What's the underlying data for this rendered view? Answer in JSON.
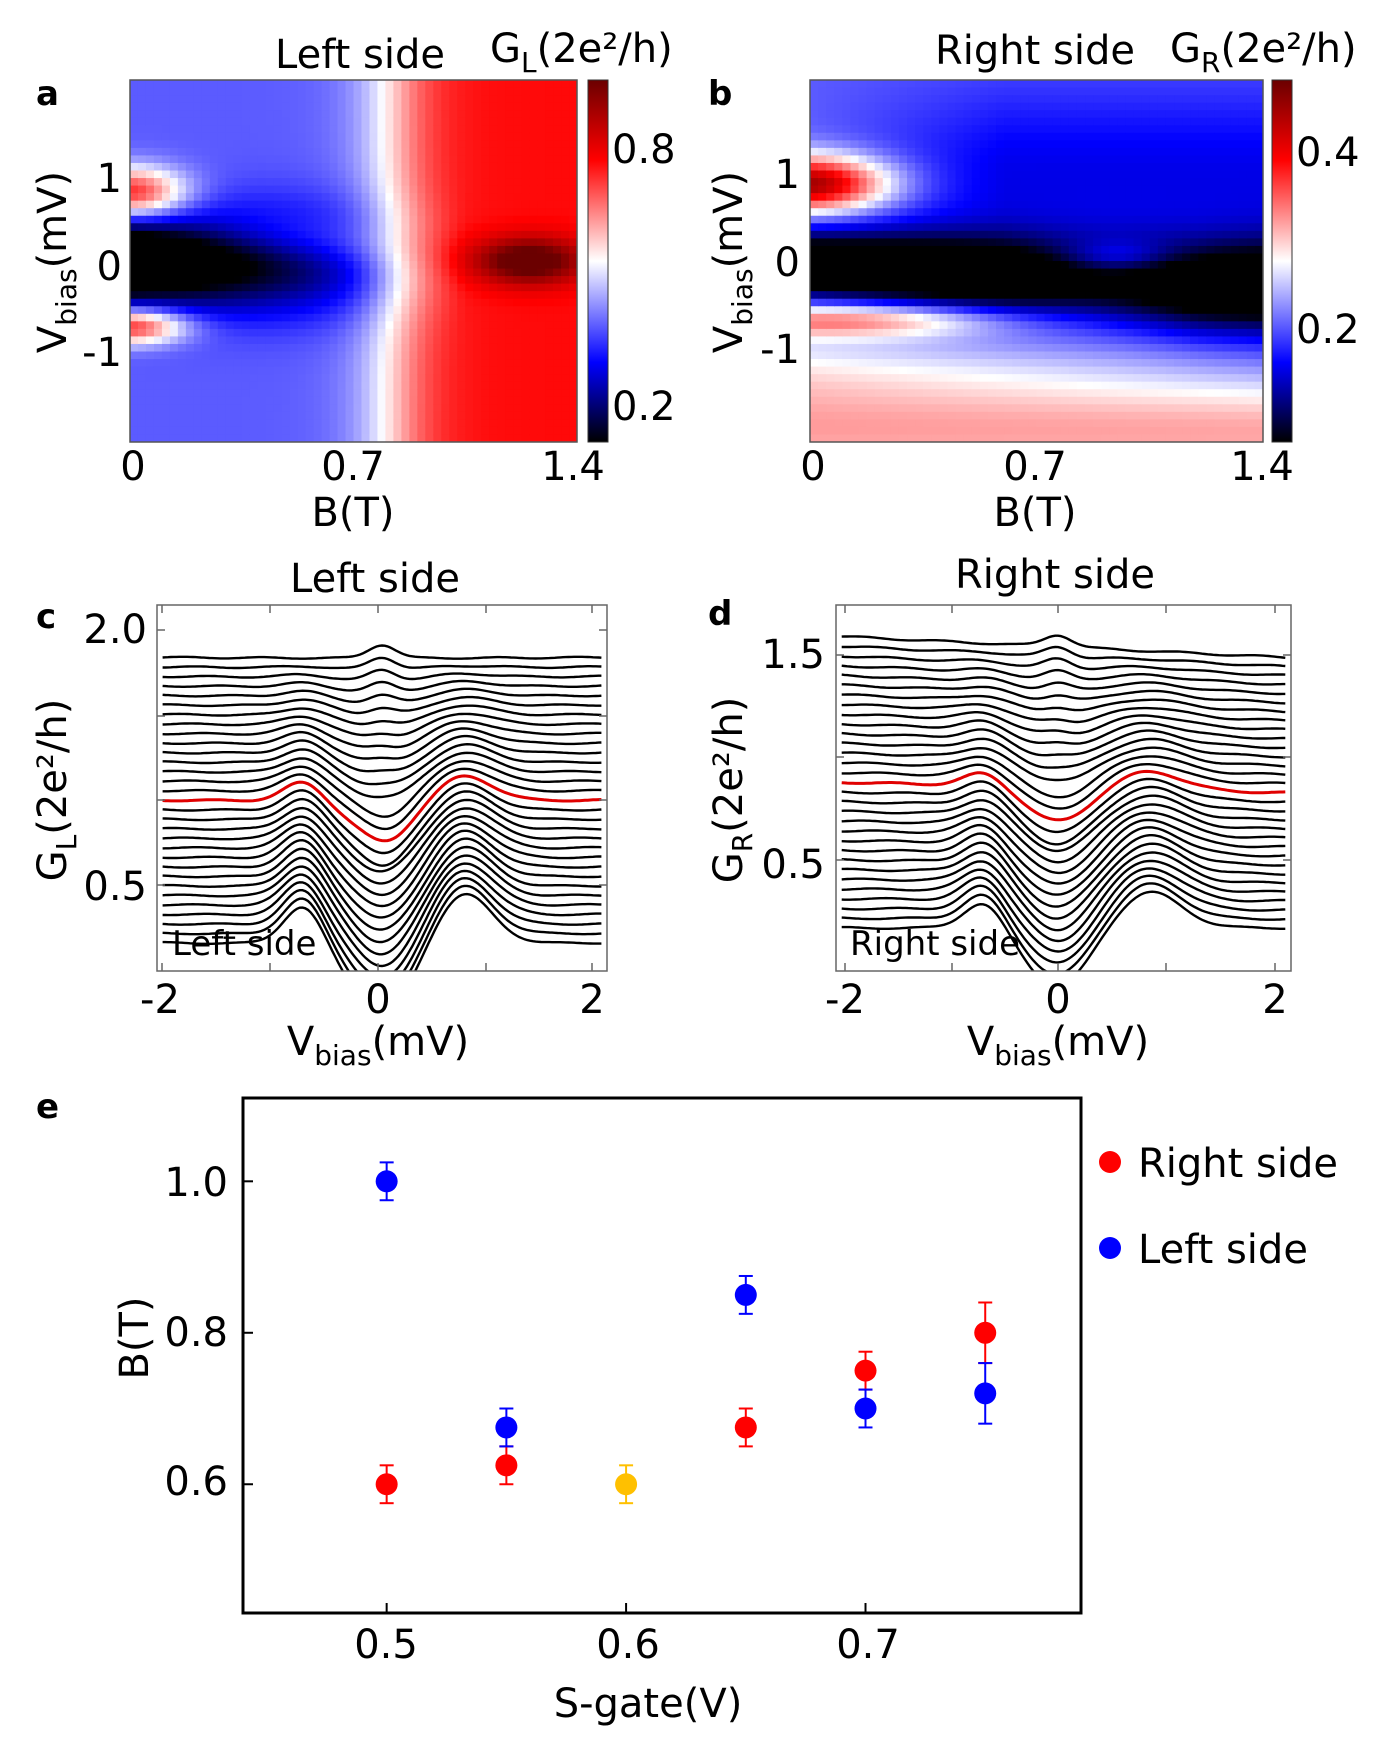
{
  "panels": {
    "a": {
      "letter": "a",
      "title": "Left side",
      "cb_label": "G",
      "cb_sub": "L",
      "cb_unit": "(2e²/h)",
      "ylabel": "V",
      "ylabel_sub": "bias",
      "ylabel_unit": "(mV)",
      "xlabel": "B(T)",
      "xticks": [
        "0",
        "0.7",
        "1.4"
      ],
      "yticks": [
        "1",
        "0",
        "-1"
      ],
      "cb_ticks": [
        "0.8",
        "0.2"
      ]
    },
    "b": {
      "letter": "b",
      "title": "Right side",
      "cb_label": "G",
      "cb_sub": "R",
      "cb_unit": "(2e²/h)",
      "ylabel": "V",
      "ylabel_sub": "bias",
      "ylabel_unit": "(mV)",
      "xlabel": "B(T)",
      "xticks": [
        "0",
        "0.7",
        "1.4"
      ],
      "yticks": [
        "1",
        "0",
        "-1"
      ],
      "cb_ticks": [
        "0.4",
        "0.2"
      ]
    },
    "c": {
      "letter": "c",
      "title": "Left side",
      "inset": "Left side",
      "ylabel": "G",
      "ylabel_sub": "L",
      "ylabel_unit": "(2e²/h)",
      "xlabel": "V",
      "xlabel_sub": "bias",
      "xlabel_unit": "(mV)",
      "xticks": [
        "-2",
        "0",
        "2"
      ],
      "yticks": [
        "2.0",
        "0.5"
      ]
    },
    "d": {
      "letter": "d",
      "title": "Right side",
      "inset": "Right side",
      "ylabel": "G",
      "ylabel_sub": "R",
      "ylabel_unit": "(2e²/h)",
      "xlabel": "V",
      "xlabel_sub": "bias",
      "xlabel_unit": "(mV)",
      "xticks": [
        "-2",
        "0",
        "2"
      ],
      "yticks": [
        "1.5",
        "0.5"
      ]
    },
    "e": {
      "letter": "e",
      "xlabel": "S-gate(V)",
      "ylabel": "B(T)",
      "xticks": [
        "0.5",
        "0.6",
        "0.7"
      ],
      "yticks": [
        "1.0",
        "0.8",
        "0.6"
      ],
      "legend": [
        {
          "label": "Right side",
          "color": "#ff0000"
        },
        {
          "label": "Left side",
          "color": "#0000ff"
        }
      ]
    }
  },
  "chart_data": [
    {
      "panel": "a",
      "type": "heatmap",
      "title": "Left side",
      "xlabel": "B(T)",
      "ylabel": "Vbias(mV)",
      "colorbar_label": "GL(2e²/h)",
      "xlim": [
        0,
        1.4
      ],
      "ylim": [
        -2,
        2
      ],
      "clim": [
        0.1,
        1.0
      ],
      "colormap": [
        "#000000",
        "#0000ff",
        "#ffffff",
        "#ff0000",
        "#6b0000"
      ]
    },
    {
      "panel": "b",
      "type": "heatmap",
      "title": "Right side",
      "xlabel": "B(T)",
      "ylabel": "Vbias(mV)",
      "colorbar_label": "GR(2e²/h)",
      "xlim": [
        0,
        1.4
      ],
      "ylim": [
        -2,
        2
      ],
      "clim": [
        0.05,
        0.48
      ],
      "colormap": [
        "#000000",
        "#0000ff",
        "#ffffff",
        "#ff0000",
        "#6b0000"
      ]
    },
    {
      "panel": "c",
      "type": "line",
      "title": "Left side",
      "xlabel": "Vbias(mV)",
      "ylabel": "GL(2e²/h)",
      "xlim": [
        -2,
        2
      ],
      "ylim": [
        0.15,
        2.15
      ],
      "n_traces": 31,
      "highlight_index": 15,
      "highlight_color": "#e00000",
      "base_offset": 0.3,
      "offset_step": 0.052
    },
    {
      "panel": "d",
      "type": "line",
      "title": "Right side",
      "xlabel": "Vbias(mV)",
      "ylabel": "GR(2e²/h)",
      "xlim": [
        -2,
        2
      ],
      "ylim": [
        0.05,
        1.75
      ],
      "n_traces": 31,
      "highlight_index": 15,
      "highlight_color": "#e00000",
      "base_offset": 0.25,
      "offset_step": 0.0435
    },
    {
      "panel": "e",
      "type": "scatter",
      "xlabel": "S-gate(V)",
      "ylabel": "B(T)",
      "xlim": [
        0.44,
        0.79
      ],
      "ylim": [
        0.43,
        1.11
      ],
      "series": [
        {
          "name": "Right side",
          "color": "#ff0000",
          "points": [
            {
              "x": 0.5,
              "y": 0.6,
              "err": 0.025
            },
            {
              "x": 0.55,
              "y": 0.625,
              "err": 0.025
            },
            {
              "x": 0.65,
              "y": 0.675,
              "err": 0.025
            },
            {
              "x": 0.7,
              "y": 0.75,
              "err": 0.025
            },
            {
              "x": 0.75,
              "y": 0.8,
              "err": 0.04
            }
          ]
        },
        {
          "name": "Left side",
          "color": "#0000ff",
          "points": [
            {
              "x": 0.5,
              "y": 1.0,
              "err": 0.025
            },
            {
              "x": 0.55,
              "y": 0.675,
              "err": 0.025
            },
            {
              "x": 0.65,
              "y": 0.85,
              "err": 0.025
            },
            {
              "x": 0.7,
              "y": 0.7,
              "err": 0.025
            },
            {
              "x": 0.75,
              "y": 0.72,
              "err": 0.04
            }
          ]
        },
        {
          "name": "",
          "color": "#ffc000",
          "points": [
            {
              "x": 0.6,
              "y": 0.6,
              "err": 0.025
            }
          ]
        }
      ]
    }
  ]
}
